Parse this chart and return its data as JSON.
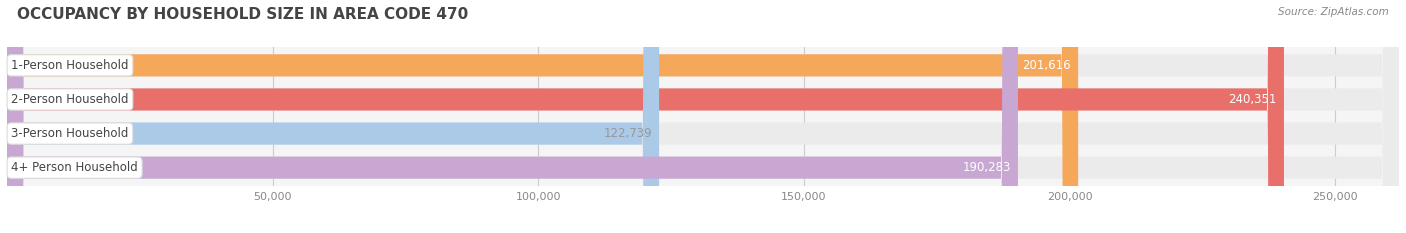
{
  "title": "OCCUPANCY BY HOUSEHOLD SIZE IN AREA CODE 470",
  "source": "Source: ZipAtlas.com",
  "categories": [
    "1-Person Household",
    "2-Person Household",
    "3-Person Household",
    "4+ Person Household"
  ],
  "values": [
    201616,
    240351,
    122739,
    190283
  ],
  "bar_colors": [
    "#F5A85A",
    "#E86F6A",
    "#AACAE8",
    "#C8A8D3"
  ],
  "bar_bg_color": "#EBEBEB",
  "value_label_colors": [
    "#FFFFFF",
    "#FFFFFF",
    "#999999",
    "#FFFFFF"
  ],
  "xlim": [
    0,
    262000
  ],
  "xticks": [
    0,
    50000,
    100000,
    150000,
    200000,
    250000
  ],
  "xtick_labels": [
    "",
    "50,000",
    "100,000",
    "150,000",
    "200,000",
    "250,000"
  ],
  "figsize": [
    14.06,
    2.33
  ],
  "dpi": 100,
  "background_color": "#FFFFFF",
  "plot_bg_color": "#F5F5F5",
  "title_fontsize": 11,
  "cat_label_fontsize": 8.5,
  "value_fontsize": 8.5,
  "tick_fontsize": 8,
  "bar_height": 0.65,
  "grid_color": "#CCCCCC"
}
